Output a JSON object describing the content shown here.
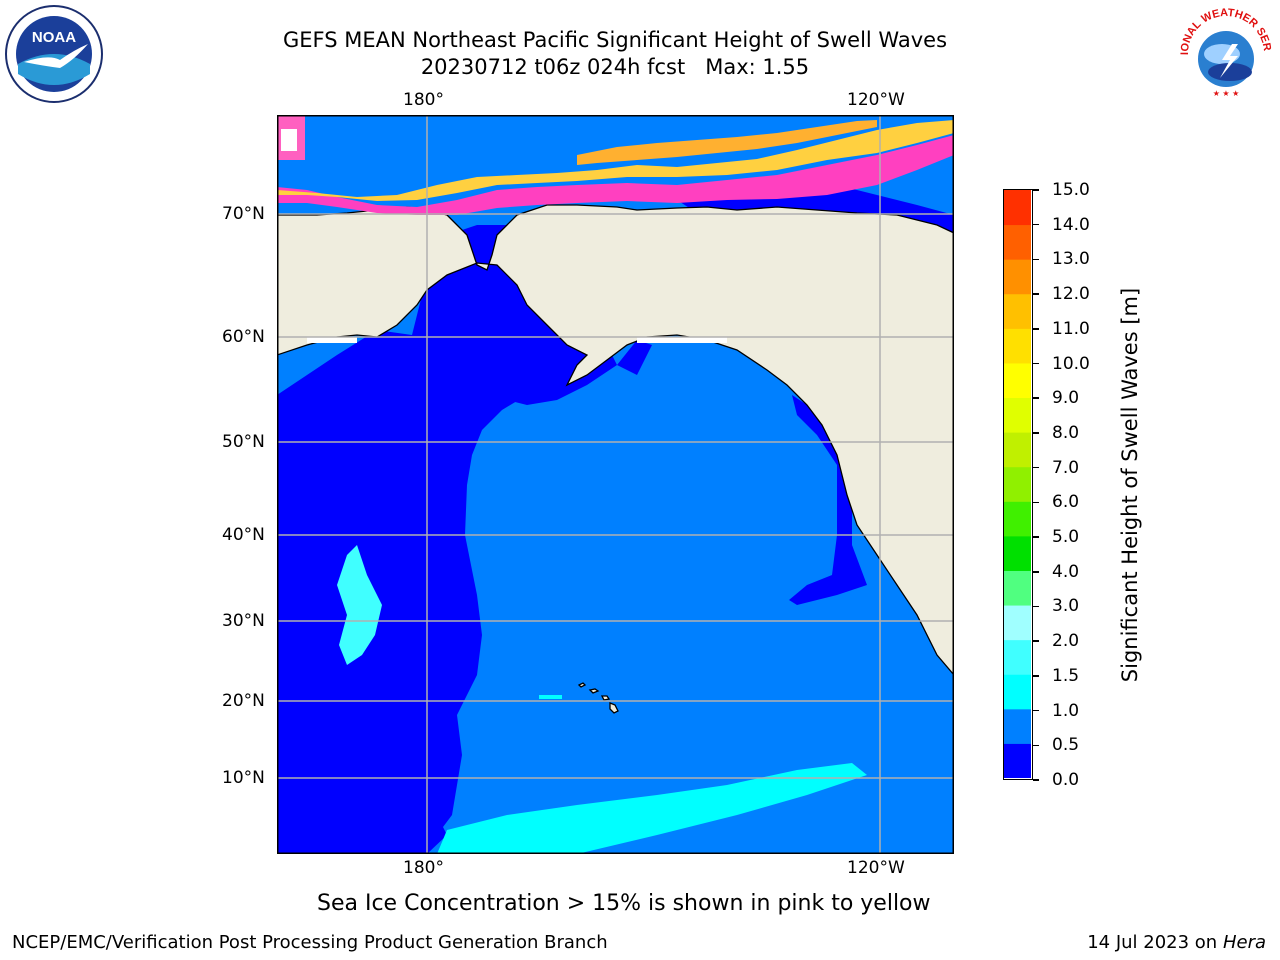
{
  "header": {
    "title_line1": "GEFS MEAN Northeast Pacific Significant Height of Swell Waves",
    "title_line2": "20230712 t06z 024h fcst   Max: 1.55"
  },
  "logos": {
    "noaa_text": "NOAA",
    "noaa_ring_text": "NATIONAL OCEANIC AND ATMOSPHERIC ADMINISTRATION · U.S. DEPARTMENT OF COMMERCE",
    "nws_ring_text": "NATIONAL WEATHER SERVICE"
  },
  "map": {
    "lon_top": [
      "180°",
      "120°W"
    ],
    "lon_bottom": [
      "180°",
      "120°W"
    ],
    "lat_labels": [
      "70°N",
      "60°N",
      "50°N",
      "40°N",
      "30°N",
      "20°N",
      "10°N"
    ],
    "colors": {
      "ocean_0_0.5": "#0000ff",
      "ocean_0.5_1": "#0080ff",
      "ocean_1_1.5": "#00ffff",
      "ocean_1.5_2": "#40ffff",
      "land": "#efedde",
      "grid": "#b0b0b0"
    }
  },
  "colorbar": {
    "label": "Significant Height of Swell Waves [m]",
    "ticks": [
      "0.0",
      "0.5",
      "1.0",
      "1.5",
      "2.0",
      "3.0",
      "4.0",
      "5.0",
      "6.0",
      "7.0",
      "8.0",
      "9.0",
      "10.0",
      "11.0",
      "12.0",
      "13.0",
      "14.0",
      "15.0"
    ],
    "colors": [
      "#0000ff",
      "#0080ff",
      "#00ffff",
      "#40ffff",
      "#a0ffff",
      "#50ff80",
      "#00e000",
      "#40f000",
      "#90f000",
      "#c0f000",
      "#e0ff00",
      "#ffff00",
      "#ffe000",
      "#ffc000",
      "#ff9000",
      "#ff6000",
      "#ff3000"
    ]
  },
  "caption": "Sea Ice Concentration > 15% is shown in pink to yellow",
  "footer": {
    "left": "NCEP/EMC/Verification Post Processing Product Generation Branch",
    "right_date": "14 Jul 2023 on ",
    "right_machine": "Hera"
  }
}
